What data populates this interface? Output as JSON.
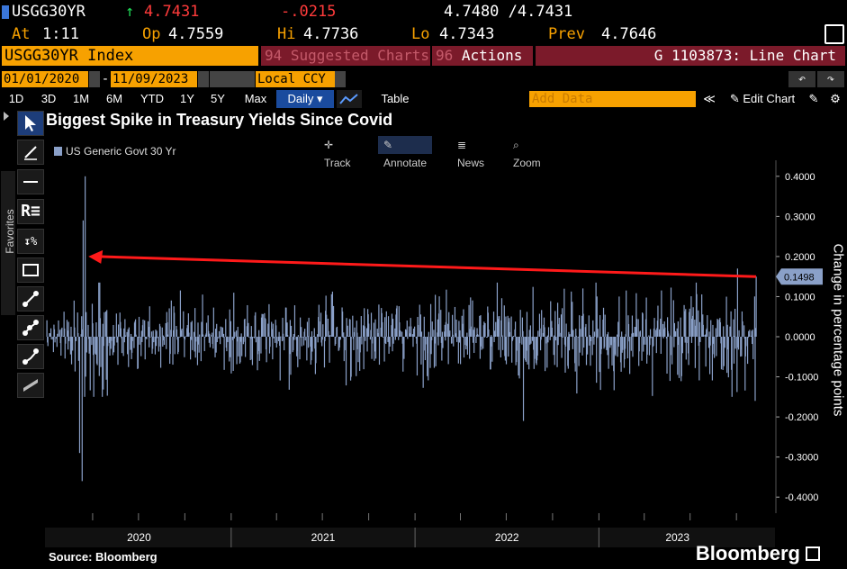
{
  "quote": {
    "ticker": "USGG30YR",
    "arrow": "↑",
    "last": "4.7431",
    "change": "-.0215",
    "bid_ask": "4.7480 /4.7431",
    "at_label": "At",
    "at_time": "1:11",
    "op_label": "Op",
    "op": "4.7559",
    "hi_label": "Hi",
    "hi": "4.7736",
    "lo_label": "Lo",
    "lo": "4.7343",
    "prev_label": "Prev",
    "prev": "4.7646"
  },
  "bar": {
    "security": "USGG30YR Index",
    "suggested": "Suggested Charts",
    "suggested_num": "94",
    "actions_num": "96",
    "actions": "Actions ▾",
    "graph_title": "G 1103873: Line Chart"
  },
  "dates": {
    "start": "01/01/2020",
    "end": "11/09/2023",
    "ccy": "Local CCY",
    "undo": "↶",
    "redo": "↷"
  },
  "ranges": {
    "items": [
      "1D",
      "3D",
      "1M",
      "6M",
      "YTD",
      "1Y",
      "5Y",
      "Max"
    ],
    "period": "Daily ▾",
    "table": "Table",
    "add_data": "Add Data",
    "collapse": "≪",
    "edit_chart": "✎ Edit Chart"
  },
  "toolbar": {
    "favorites": "Favorites",
    "text_tool": "R≡",
    "pct_tool": "%"
  },
  "chart_controls": {
    "track": "Track",
    "annotate": "Annotate",
    "news": "News",
    "zoom": "Zoom"
  },
  "colors": {
    "series": "#8aa0c8",
    "annotation": "#ff1a1a",
    "accent": "#f7a100",
    "bar_bg": "#7b1a2a"
  },
  "chart_data": {
    "type": "bar",
    "title": "Biggest Spike in Treasury Yields Since Covid",
    "legend": [
      "US Generic Govt 30 Yr"
    ],
    "ylabel": "Change in percentage points",
    "ylim": [
      -0.44,
      0.44
    ],
    "yticks": [
      0.4,
      0.3,
      0.2,
      0.1,
      0.0,
      -0.1,
      -0.2,
      -0.3,
      -0.4
    ],
    "ytick_labels": [
      "0.4000",
      "0.3000",
      "0.2000",
      "0.1000",
      "0.0000",
      "-0.1000",
      "-0.2000",
      "-0.3000",
      "-0.4000"
    ],
    "x_labels": [
      "2020",
      "2021",
      "2022",
      "2023"
    ],
    "last_value_label": "0.1498",
    "last_value": 0.1498,
    "notable": [
      {
        "date": "2020-03",
        "value": 0.4
      },
      {
        "date": "2020-03",
        "value": 0.29
      },
      {
        "date": "2020-03",
        "value": -0.36
      },
      {
        "date": "2020-03",
        "value": -0.29
      },
      {
        "date": "2022-08",
        "value": -0.21
      },
      {
        "date": "2023-10",
        "value": 0.17
      },
      {
        "date": "2023-11",
        "value": -0.16
      },
      {
        "date": "2023-11",
        "value": 0.1498
      }
    ],
    "arrow_from": {
      "date": "2023-11",
      "value": 0.1498
    },
    "arrow_to": {
      "date": "2020-03",
      "value": 0.2
    },
    "source": "Source: Bloomberg"
  },
  "brand": "Bloomberg"
}
